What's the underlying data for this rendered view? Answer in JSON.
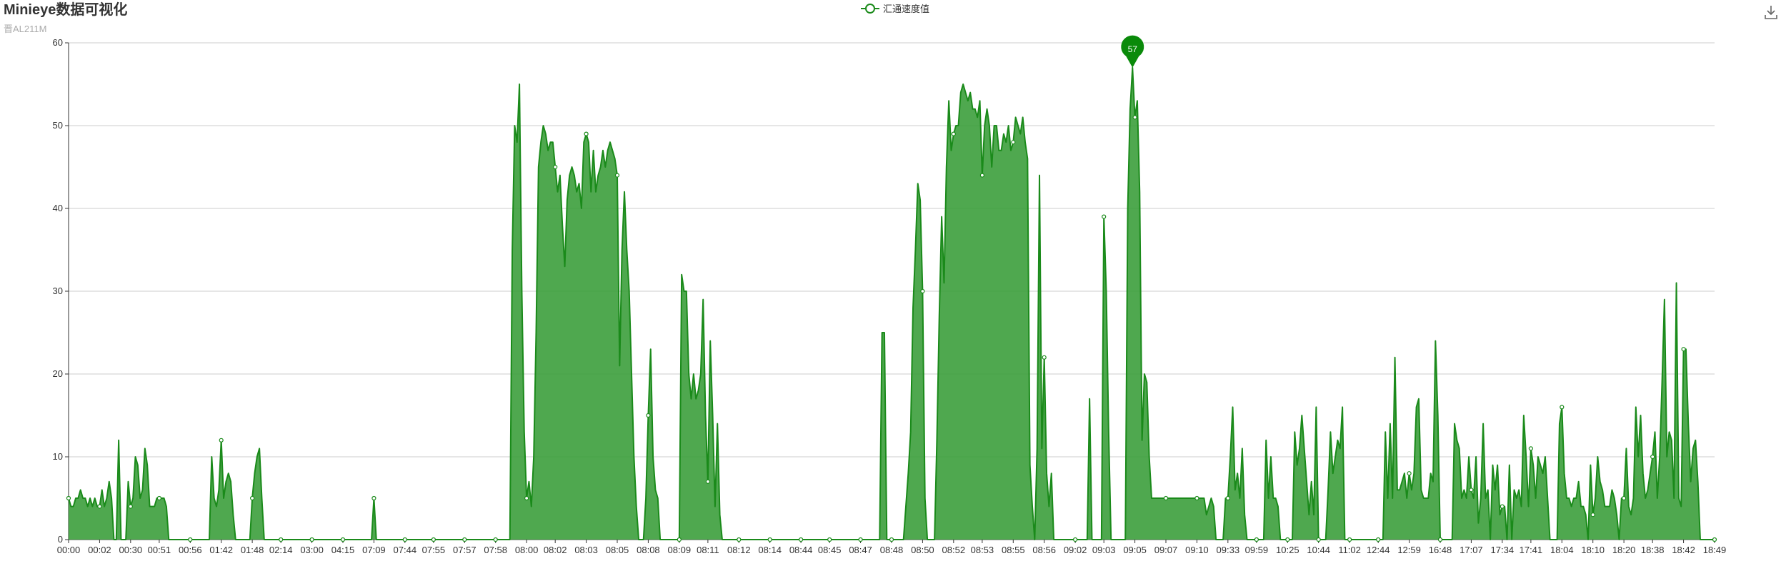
{
  "header": {
    "title": "Minieye数据可视化",
    "subtitle": "晋AL211M"
  },
  "toolbox": {
    "download_icon": "download-icon"
  },
  "chart_data": {
    "type": "area",
    "title": "Minieye数据可视化",
    "subtitle": "晋AL211M",
    "xlabel": "",
    "ylabel": "",
    "ylim": [
      0,
      60
    ],
    "yticks": [
      0,
      10,
      20,
      30,
      40,
      50,
      60
    ],
    "grid": true,
    "legend_position": "top-center",
    "color": "#1a8a1a",
    "fill_color": "#3c9e3c",
    "x_tick_labels": [
      "00:00",
      "00:02",
      "00:30",
      "00:51",
      "00:56",
      "01:42",
      "01:48",
      "02:14",
      "03:00",
      "04:15",
      "07:09",
      "07:44",
      "07:55",
      "07:57",
      "07:58",
      "08:00",
      "08:02",
      "08:03",
      "08:05",
      "08:08",
      "08:09",
      "08:11",
      "08:12",
      "08:14",
      "08:44",
      "08:45",
      "08:47",
      "08:48",
      "08:50",
      "08:52",
      "08:53",
      "08:55",
      "08:56",
      "09:02",
      "09:03",
      "09:05",
      "09:07",
      "09:10",
      "09:33",
      "09:59",
      "10:25",
      "10:44",
      "11:02",
      "12:44",
      "12:59",
      "16:48",
      "17:07",
      "17:34",
      "17:41",
      "18:04",
      "18:10",
      "18:20",
      "18:38",
      "18:42",
      "18:49"
    ],
    "series": [
      {
        "name": "汇通速度值",
        "values": [
          5,
          4,
          4,
          5,
          5,
          6,
          5,
          5,
          4,
          5,
          4,
          5,
          4,
          4,
          6,
          4,
          5,
          7,
          5,
          0,
          0,
          12,
          0,
          0,
          0,
          7,
          4,
          5,
          10,
          9,
          5,
          6,
          11,
          9,
          4,
          4,
          4,
          5,
          5,
          5,
          5,
          4,
          0,
          0,
          0,
          0,
          0,
          0,
          0,
          0,
          0,
          0,
          0,
          0,
          0,
          0,
          0,
          0,
          0,
          0,
          10,
          5,
          4,
          6,
          12,
          5,
          7,
          8,
          7,
          3,
          0,
          0,
          0,
          0,
          0,
          0,
          0,
          5,
          8,
          10,
          11,
          5,
          0,
          0,
          0,
          0,
          0,
          0,
          0,
          0,
          0,
          0,
          0,
          0,
          0,
          0,
          0,
          0,
          0,
          0,
          0,
          0,
          0,
          0,
          0,
          0,
          0,
          0,
          0,
          0,
          0,
          0,
          0,
          0,
          0,
          0,
          0,
          0,
          0,
          0,
          0,
          0,
          0,
          0,
          0,
          0,
          0,
          0,
          5,
          0,
          0,
          0,
          0,
          0,
          0,
          0,
          0,
          0,
          0,
          0,
          0,
          0,
          0,
          0,
          0,
          0,
          0,
          0,
          0,
          0,
          0,
          0,
          0,
          0,
          0,
          0,
          0,
          0,
          0,
          0,
          0,
          0,
          0,
          0,
          0,
          0,
          0,
          0,
          0,
          0,
          0,
          0,
          0,
          0,
          0,
          0,
          0,
          0,
          0,
          0,
          0,
          0,
          0,
          0,
          0,
          0,
          35,
          50,
          48,
          55,
          30,
          13,
          5,
          7,
          4,
          10,
          25,
          45,
          48,
          50,
          49,
          47,
          48,
          48,
          45,
          42,
          44,
          38,
          33,
          41,
          44,
          45,
          44,
          42,
          43,
          40,
          48,
          49,
          48,
          42,
          47,
          42,
          44,
          45,
          47,
          45,
          47,
          48,
          47,
          46,
          44,
          21,
          35,
          42,
          35,
          30,
          20,
          10,
          4,
          0,
          0,
          0,
          5,
          15,
          23,
          10,
          6,
          5,
          0,
          0,
          0,
          0,
          0,
          0,
          0,
          0,
          0,
          32,
          30,
          30,
          20,
          17,
          20,
          17,
          18,
          20,
          29,
          15,
          7,
          24,
          15,
          4,
          14,
          3,
          0,
          0,
          0,
          0,
          0,
          0,
          0,
          0,
          0,
          0,
          0,
          0,
          0,
          0,
          0,
          0,
          0,
          0,
          0,
          0,
          0,
          0,
          0,
          0,
          0,
          0,
          0,
          0,
          0,
          0,
          0,
          0,
          0,
          0,
          0,
          0,
          0,
          0,
          0,
          0,
          0,
          0,
          0,
          0,
          0,
          0,
          0,
          0,
          0,
          0,
          0,
          0,
          0,
          0,
          0,
          0,
          0,
          0,
          0,
          0,
          0,
          0,
          0,
          0,
          0,
          0,
          0,
          25,
          25,
          0,
          0,
          0,
          0,
          0,
          0,
          0,
          0,
          4,
          8,
          13,
          28,
          35,
          43,
          41,
          30,
          5,
          0,
          0,
          0,
          0,
          12,
          27,
          39,
          31,
          45,
          53,
          47,
          49,
          50,
          50,
          54,
          55,
          54,
          53,
          54,
          52,
          52,
          51,
          53,
          44,
          50,
          52,
          50,
          45,
          50,
          50,
          47,
          47,
          49,
          48,
          50,
          47,
          48,
          51,
          50,
          49,
          51,
          48,
          46,
          9,
          4,
          0,
          11,
          44,
          11,
          22,
          8,
          4,
          8,
          0,
          0,
          0,
          0,
          0,
          0,
          0,
          0,
          0,
          0,
          0,
          0,
          0,
          0,
          0,
          17,
          0,
          0,
          0,
          0,
          0,
          39,
          30,
          13,
          0,
          0,
          0,
          0,
          0,
          0,
          0,
          40,
          52,
          57,
          51,
          53,
          42,
          12,
          20,
          19,
          10,
          5,
          5,
          5,
          5,
          5,
          5,
          5,
          5,
          5,
          5,
          5,
          5,
          5,
          5,
          5,
          5,
          5,
          5,
          5,
          5,
          5,
          5,
          5,
          3,
          4,
          5,
          4,
          0,
          0,
          0,
          0,
          5,
          5,
          10,
          16,
          6,
          8,
          5,
          11,
          3,
          0,
          0,
          0,
          0,
          0,
          0,
          0,
          0,
          12,
          5,
          10,
          5,
          5,
          4,
          0,
          0,
          0,
          0,
          0,
          0,
          13,
          9,
          11,
          15,
          11,
          7,
          3,
          7,
          3,
          16,
          0,
          0,
          0,
          0,
          6,
          13,
          8,
          10,
          12,
          11,
          16,
          0,
          0,
          0,
          0,
          0,
          0,
          0,
          0,
          0,
          0,
          0,
          0,
          0,
          0,
          0,
          0,
          0,
          13,
          5,
          14,
          5,
          22,
          6,
          6,
          7,
          8,
          5,
          8,
          6,
          8,
          16,
          17,
          6,
          5,
          5,
          5,
          8,
          7,
          24,
          15,
          0,
          0,
          0,
          0,
          0,
          0,
          14,
          12,
          11,
          5,
          6,
          5,
          10,
          6,
          5,
          10,
          2,
          5,
          14,
          5,
          6,
          0,
          9,
          6,
          9,
          3,
          4,
          4,
          0,
          9,
          0,
          6,
          5,
          6,
          4,
          15,
          10,
          4,
          11,
          9,
          5,
          10,
          9,
          8,
          10,
          5,
          0,
          0,
          0,
          0,
          14,
          16,
          8,
          5,
          5,
          4,
          5,
          5,
          7,
          4,
          4,
          3,
          0,
          9,
          3,
          5,
          10,
          7,
          6,
          4,
          4,
          4,
          6,
          5,
          3,
          0,
          5,
          5,
          11,
          4,
          3,
          5,
          16,
          10,
          15,
          8,
          5,
          6,
          8,
          10,
          13,
          5,
          10,
          19,
          29,
          10,
          13,
          12,
          5,
          31,
          5,
          4,
          23,
          23,
          14,
          7,
          11,
          12,
          7,
          0,
          0,
          0,
          0,
          0,
          0,
          0
        ]
      }
    ],
    "max_marker": {
      "value": 57,
      "label": "57"
    }
  }
}
